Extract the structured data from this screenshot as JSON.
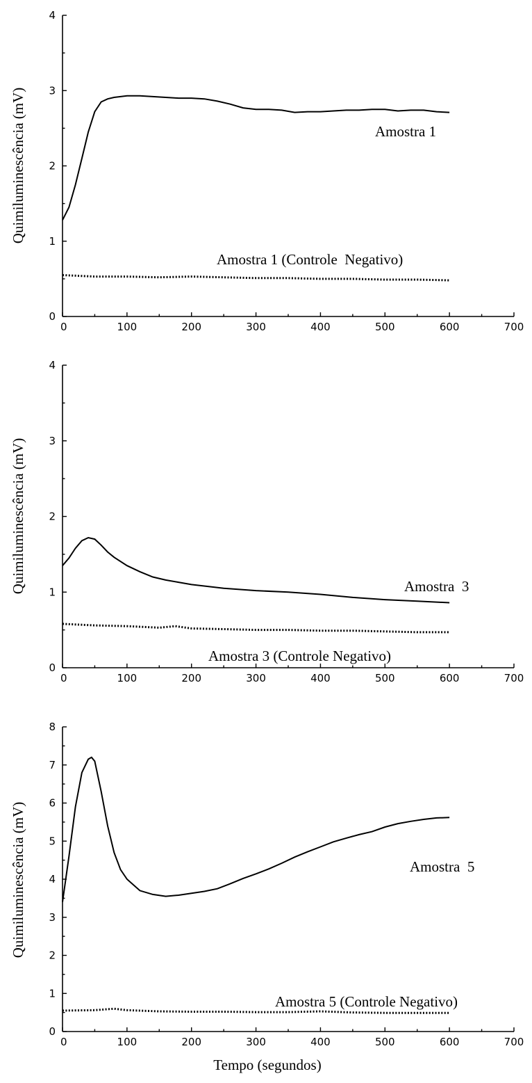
{
  "chart_data": [
    {
      "type": "line",
      "ylabel": "Quimiluminescência (mV)",
      "xlabel": "",
      "xlim": [
        0,
        700
      ],
      "ylim": [
        0,
        4
      ],
      "xticks": [
        0,
        100,
        200,
        300,
        400,
        500,
        600,
        700
      ],
      "yticks": [
        0,
        1,
        2,
        3,
        4
      ],
      "series": [
        {
          "name": "Amostra 1",
          "style": "solid",
          "color": "#000000",
          "x": [
            0,
            10,
            20,
            30,
            40,
            50,
            60,
            70,
            80,
            90,
            100,
            120,
            140,
            160,
            180,
            200,
            220,
            240,
            260,
            280,
            300,
            320,
            340,
            360,
            380,
            400,
            420,
            440,
            460,
            480,
            500,
            520,
            540,
            560,
            580,
            600
          ],
          "y": [
            1.28,
            1.45,
            1.75,
            2.1,
            2.45,
            2.72,
            2.85,
            2.89,
            2.91,
            2.92,
            2.93,
            2.93,
            2.92,
            2.91,
            2.9,
            2.9,
            2.89,
            2.86,
            2.82,
            2.77,
            2.75,
            2.75,
            2.74,
            2.71,
            2.72,
            2.72,
            2.73,
            2.74,
            2.74,
            2.75,
            2.75,
            2.73,
            2.74,
            2.74,
            2.72,
            2.71
          ]
        },
        {
          "name": "Amostra 1 (Controle  Negativo)",
          "style": "dotted",
          "color": "#000000",
          "x": [
            0,
            50,
            100,
            150,
            200,
            250,
            300,
            350,
            400,
            450,
            500,
            550,
            600
          ],
          "y": [
            0.55,
            0.53,
            0.53,
            0.52,
            0.53,
            0.52,
            0.51,
            0.51,
            0.5,
            0.5,
            0.49,
            0.49,
            0.48
          ]
        }
      ]
    },
    {
      "type": "line",
      "ylabel": "Quimiluminescência (mV)",
      "xlabel": "",
      "xlim": [
        0,
        700
      ],
      "ylim": [
        0,
        4
      ],
      "xticks": [
        0,
        100,
        200,
        300,
        400,
        500,
        600,
        700
      ],
      "yticks": [
        0,
        1,
        2,
        3,
        4
      ],
      "series": [
        {
          "name": "Amostra  3",
          "style": "solid",
          "color": "#000000",
          "x": [
            0,
            10,
            20,
            30,
            40,
            50,
            60,
            70,
            80,
            100,
            120,
            140,
            160,
            180,
            200,
            250,
            300,
            350,
            400,
            450,
            500,
            550,
            600
          ],
          "y": [
            1.35,
            1.45,
            1.58,
            1.68,
            1.72,
            1.7,
            1.62,
            1.53,
            1.46,
            1.35,
            1.27,
            1.2,
            1.16,
            1.13,
            1.1,
            1.05,
            1.02,
            1.0,
            0.97,
            0.93,
            0.9,
            0.88,
            0.86
          ]
        },
        {
          "name": "Amostra 3 (Controle Negativo)",
          "style": "dotted",
          "color": "#cc2222",
          "x": [
            0,
            50,
            100,
            150,
            175,
            200,
            250,
            300,
            350,
            400,
            450,
            500,
            550,
            600
          ],
          "y": [
            0.58,
            0.56,
            0.55,
            0.53,
            0.55,
            0.52,
            0.51,
            0.5,
            0.5,
            0.49,
            0.49,
            0.48,
            0.47,
            0.47
          ]
        }
      ]
    },
    {
      "type": "line",
      "ylabel": "Quimiluminescência (mV)",
      "xlabel": "Tempo (segundos)",
      "xlim": [
        0,
        700
      ],
      "ylim": [
        0,
        8
      ],
      "xticks": [
        0,
        100,
        200,
        300,
        400,
        500,
        600,
        700
      ],
      "yticks": [
        0,
        1,
        2,
        3,
        4,
        5,
        6,
        7,
        8
      ],
      "series": [
        {
          "name": "Amostra  5",
          "style": "solid",
          "color": "#000000",
          "x": [
            0,
            10,
            20,
            30,
            40,
            45,
            50,
            60,
            70,
            80,
            90,
            100,
            120,
            140,
            160,
            180,
            200,
            220,
            240,
            260,
            280,
            300,
            320,
            340,
            360,
            380,
            400,
            420,
            440,
            460,
            480,
            500,
            520,
            540,
            560,
            580,
            600
          ],
          "y": [
            3.4,
            4.6,
            5.9,
            6.8,
            7.15,
            7.2,
            7.1,
            6.3,
            5.4,
            4.7,
            4.25,
            4.0,
            3.7,
            3.6,
            3.55,
            3.58,
            3.63,
            3.68,
            3.75,
            3.88,
            4.02,
            4.14,
            4.27,
            4.42,
            4.58,
            4.72,
            4.85,
            4.98,
            5.08,
            5.17,
            5.25,
            5.37,
            5.46,
            5.52,
            5.57,
            5.61,
            5.62
          ]
        },
        {
          "name": "Amostra 5 (Controle Negativo)",
          "style": "dotted",
          "color": "#000000",
          "x": [
            0,
            50,
            80,
            100,
            150,
            200,
            250,
            300,
            350,
            400,
            450,
            500,
            550,
            600
          ],
          "y": [
            0.55,
            0.56,
            0.6,
            0.56,
            0.53,
            0.52,
            0.52,
            0.51,
            0.51,
            0.53,
            0.5,
            0.49,
            0.49,
            0.49
          ]
        }
      ]
    }
  ]
}
